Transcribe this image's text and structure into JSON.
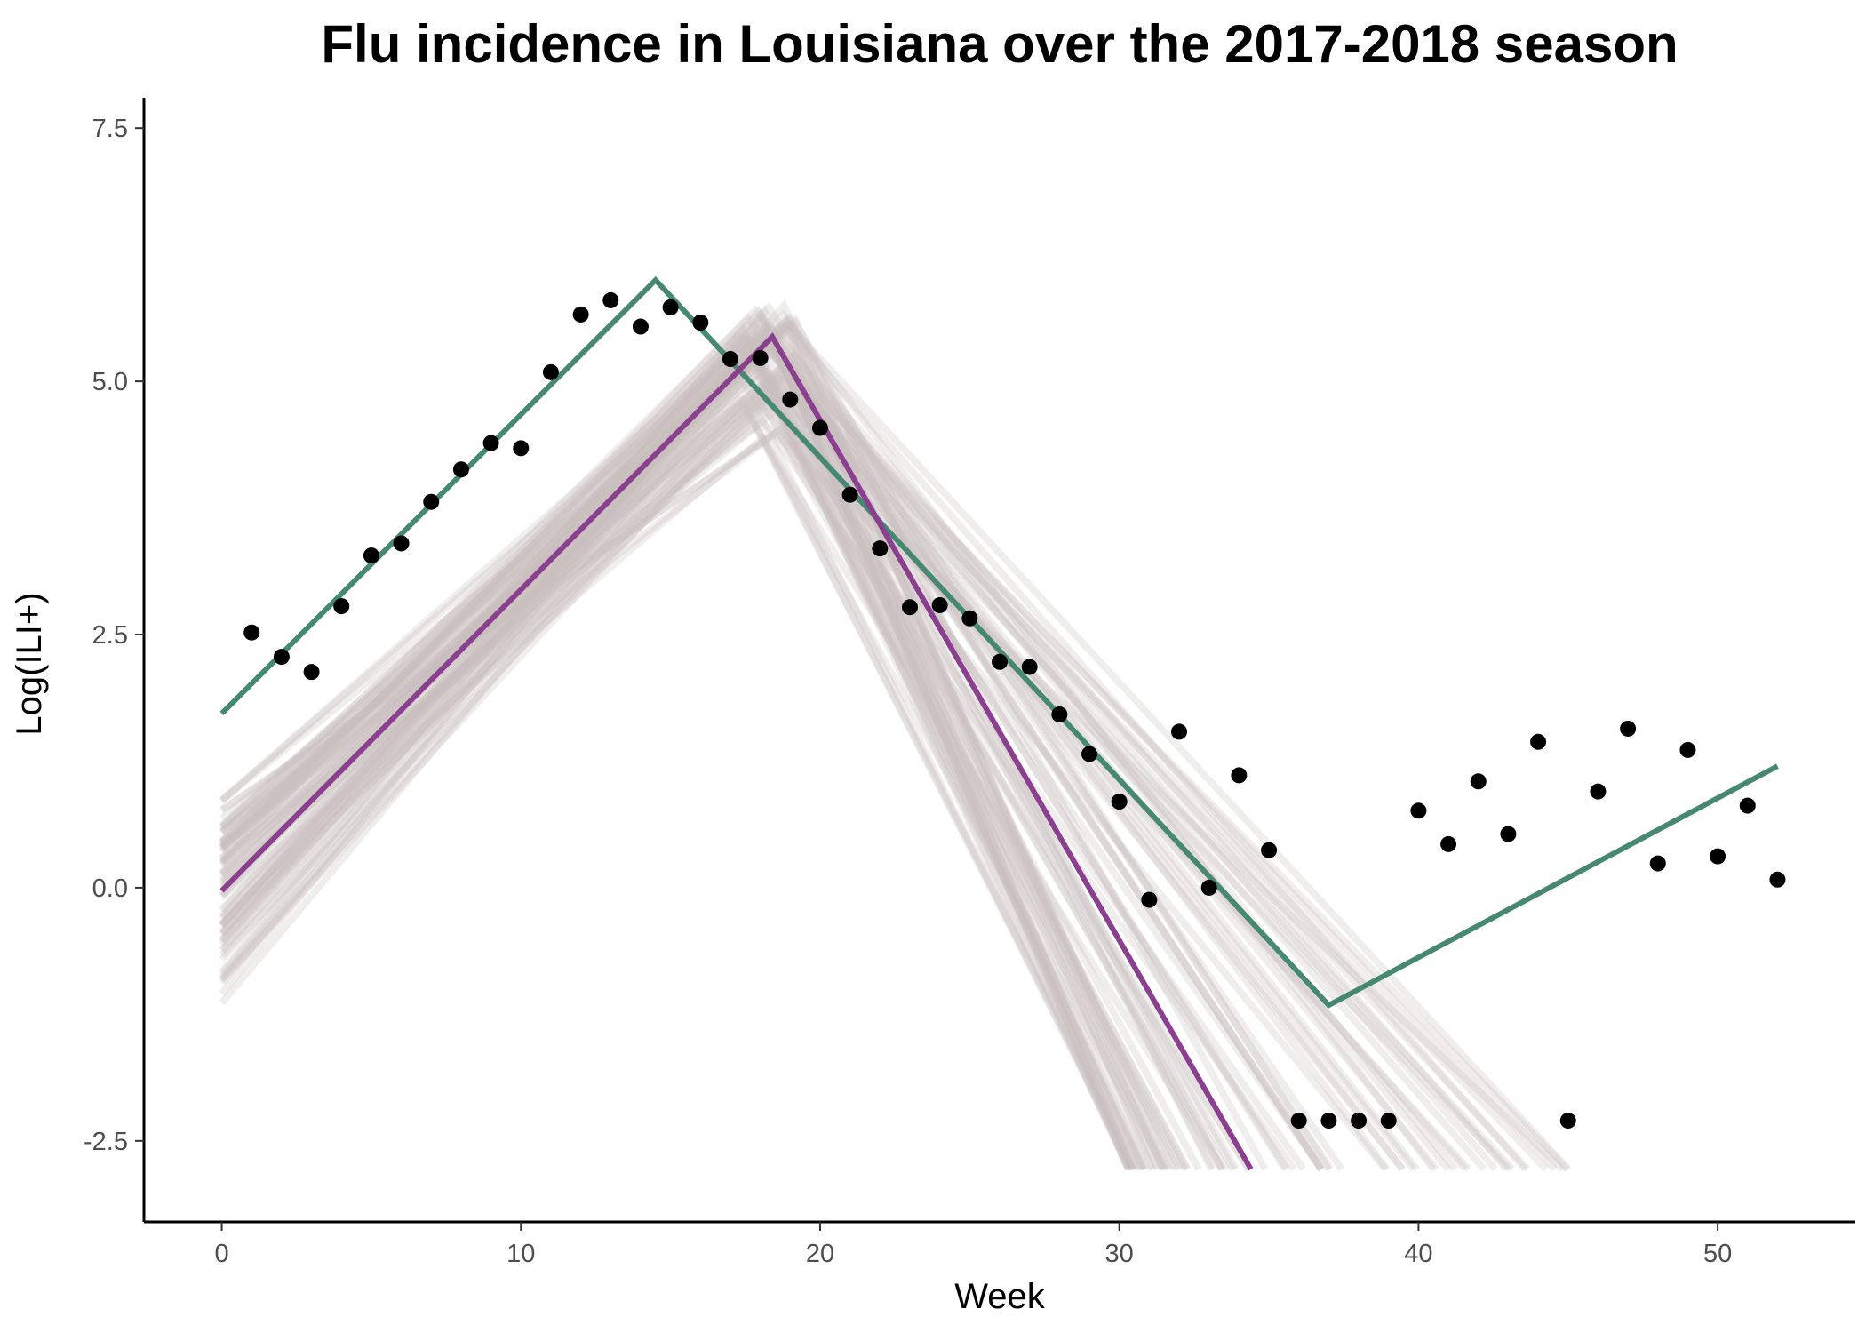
{
  "chart_data": {
    "type": "line",
    "title": "Flu incidence in Louisiana over the 2017-2018 season",
    "xlabel": "Week",
    "ylabel": "Log(ILI+)",
    "xlim": [
      -2.6,
      54.6
    ],
    "ylim": [
      -3.3,
      7.8
    ],
    "x_ticks": [
      0,
      10,
      20,
      30,
      40,
      50
    ],
    "x_tick_labels": [
      "0",
      "10",
      "20",
      "30",
      "40",
      "50"
    ],
    "y_ticks": [
      -2.5,
      0,
      2.5,
      5,
      7.5
    ],
    "y_tick_labels": [
      "-2.5",
      "0.0",
      "2.5",
      "5.0",
      "7.5"
    ],
    "grid": false,
    "legend": "none",
    "colors": {
      "fit_line": "#478872",
      "mean_sample": "#8a3f8f",
      "posterior_samples": "#c8bebf",
      "points": "#000000"
    },
    "series": [
      {
        "kind": "points",
        "x": [
          1,
          2,
          3,
          4,
          5,
          6,
          7,
          8,
          9,
          10,
          11,
          12,
          13,
          14,
          15,
          16,
          17,
          18,
          19,
          20,
          21,
          22,
          23,
          24,
          25,
          26,
          27,
          28,
          29,
          30,
          31,
          32,
          33,
          34,
          35,
          36,
          37,
          38,
          39,
          40,
          41,
          42,
          43,
          44,
          45,
          46,
          47,
          48,
          49,
          50,
          51,
          52
        ],
        "y": [
          2.52,
          2.28,
          2.13,
          2.78,
          3.28,
          3.4,
          3.81,
          4.13,
          4.39,
          4.34,
          5.09,
          5.66,
          5.8,
          5.54,
          5.73,
          5.58,
          5.22,
          5.23,
          4.82,
          4.54,
          3.88,
          3.35,
          2.77,
          2.79,
          2.66,
          2.23,
          2.18,
          1.71,
          1.32,
          0.85,
          -0.12,
          1.54,
          0.0,
          1.11,
          0.37,
          -2.3,
          -2.3,
          -2.3,
          -2.3,
          0.76,
          0.43,
          1.05,
          0.53,
          1.44,
          -2.3,
          0.95,
          1.57,
          0.24,
          1.36,
          0.31,
          0.81,
          0.08
        ]
      },
      {
        "kind": "line",
        "x": [
          0,
          14.5,
          37,
          52
        ],
        "y": [
          1.72,
          6.0,
          -1.16,
          1.2
        ]
      },
      {
        "kind": "line",
        "x": [
          0,
          18.4,
          34.4
        ],
        "y": [
          -0.03,
          5.44,
          -2.78
        ]
      }
    ],
    "posterior_band": {
      "samples": 80,
      "start_x": 0,
      "start_y_range": [
        -1.5,
        0.9
      ],
      "peak_x_range": [
        17.2,
        19.2
      ],
      "peak_y_range": [
        4.3,
        5.75
      ],
      "end_y": -2.78,
      "end_x_range": [
        30.3,
        45.1
      ]
    }
  }
}
